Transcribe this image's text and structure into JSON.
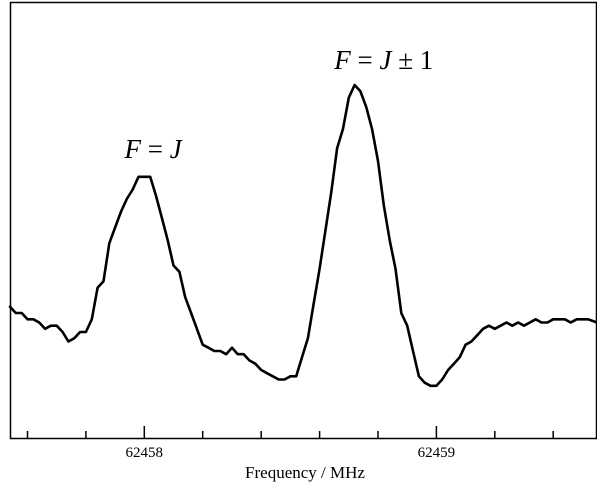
{
  "chart_data": {
    "type": "line",
    "title": "",
    "xlabel": "Frequency / MHz",
    "ylabel": "",
    "xlim": [
      62457.54,
      62459.55
    ],
    "ylim": [
      0,
      100
    ],
    "x_major_ticks": [
      62458,
      62459
    ],
    "x_tick_labels": [
      "62458",
      "62459"
    ],
    "x_minor_step": 0.2,
    "grid": false,
    "legend": "none",
    "line_color": "#000000",
    "annotations": [
      {
        "text_parts": [
          {
            "t": "F",
            "italic": true
          },
          {
            "t": " = ",
            "italic": false
          },
          {
            "t": "J",
            "italic": true
          }
        ],
        "x": 62458.03,
        "y": 79
      },
      {
        "text_parts": [
          {
            "t": "F",
            "italic": true
          },
          {
            "t": " = ",
            "italic": false
          },
          {
            "t": "J",
            "italic": true
          },
          {
            "t": " ± 1",
            "italic": false
          }
        ],
        "x": 62458.82,
        "y": 107
      }
    ],
    "series": [
      {
        "x": [
          62457.54,
          62457.56,
          62457.58,
          62457.6,
          62457.62,
          62457.64,
          62457.66,
          62457.68,
          62457.7,
          62457.72,
          62457.74,
          62457.76,
          62457.78,
          62457.8,
          62457.82,
          62457.84,
          62457.86,
          62457.88,
          62457.9,
          62457.92,
          62457.94,
          62457.96,
          62457.98,
          62458.0,
          62458.02,
          62458.04,
          62458.06,
          62458.08,
          62458.1,
          62458.12,
          62458.14,
          62458.16,
          62458.18,
          62458.2,
          62458.22,
          62458.24,
          62458.26,
          62458.28,
          62458.3,
          62458.32,
          62458.34,
          62458.36,
          62458.38,
          62458.4,
          62458.42,
          62458.44,
          62458.46,
          62458.48,
          62458.5,
          62458.52,
          62458.54,
          62458.56,
          62458.58,
          62458.6,
          62458.62,
          62458.64,
          62458.66,
          62458.68,
          62458.7,
          62458.72,
          62458.74,
          62458.76,
          62458.78,
          62458.8,
          62458.82,
          62458.84,
          62458.86,
          62458.88,
          62458.9,
          62458.92,
          62458.94,
          62458.96,
          62458.98,
          62459.0,
          62459.02,
          62459.04,
          62459.06,
          62459.08,
          62459.1,
          62459.12,
          62459.14,
          62459.16,
          62459.18,
          62459.2,
          62459.22,
          62459.24,
          62459.26,
          62459.28,
          62459.3,
          62459.32,
          62459.34,
          62459.36,
          62459.38,
          62459.4,
          62459.42,
          62459.44,
          62459.46,
          62459.48,
          62459.5,
          62459.52,
          62459.55
        ],
        "y": [
          32,
          30,
          30,
          28,
          28,
          27,
          25,
          26,
          26,
          24,
          21,
          22,
          24,
          24,
          28,
          38,
          40,
          52,
          57,
          62,
          66,
          69,
          73,
          73,
          73,
          67,
          60,
          53,
          45,
          43,
          35,
          30,
          25,
          20,
          19,
          18,
          18,
          17,
          19,
          17,
          17,
          15,
          14,
          12,
          11,
          10,
          9,
          9,
          10,
          10,
          16,
          22,
          33,
          44,
          56,
          68,
          82,
          88,
          98,
          102,
          100,
          95,
          88,
          78,
          64,
          53,
          44,
          30,
          26,
          18,
          10,
          8,
          7,
          7,
          9,
          12,
          14,
          16,
          20,
          21,
          23,
          25,
          26,
          25,
          26,
          27,
          26,
          27,
          26,
          27,
          28,
          27,
          27,
          28,
          28,
          28,
          27,
          28,
          28,
          28,
          27
        ]
      }
    ]
  }
}
